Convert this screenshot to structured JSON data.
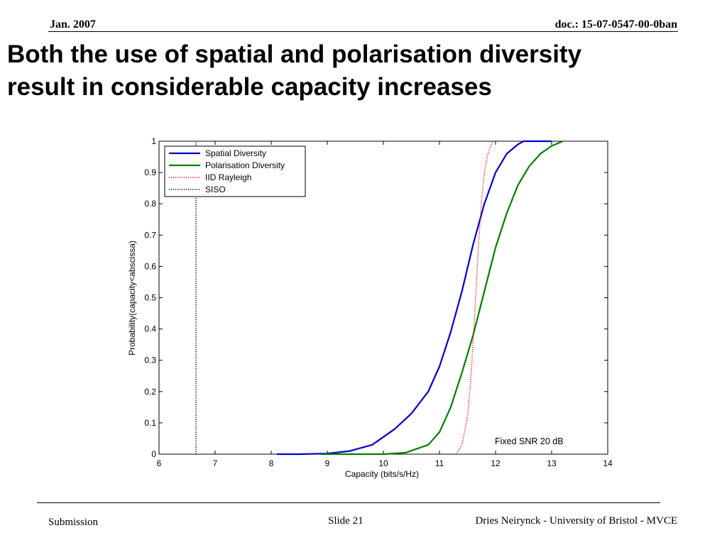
{
  "header": {
    "date": "Jan.  2007",
    "doc_id": "doc.: 15-07-0547-00-0ban"
  },
  "slide_title": {
    "line1": "Both the use of spatial and polarisation diversity",
    "line2": "result in considerable capacity increases"
  },
  "footer": {
    "left": "Submission",
    "center": "Slide 21",
    "right": "Dries Neirynck - University of Bristol - MVCE"
  },
  "chart_data": {
    "type": "line",
    "title": "",
    "xlabel": "Capacity (bits/s/Hz)",
    "ylabel": "Probability(capacity<abscissa)",
    "xlim": [
      6,
      14
    ],
    "ylim": [
      0,
      1
    ],
    "xticks": [
      6,
      7,
      8,
      9,
      10,
      11,
      12,
      13,
      14
    ],
    "yticks": [
      0,
      0.1,
      0.2,
      0.3,
      0.4,
      0.5,
      0.6,
      0.7,
      0.8,
      0.9,
      1
    ],
    "grid": false,
    "legend_position": "top-left",
    "annotation": "Fixed SNR 20 dB",
    "series": [
      {
        "name": "Spatial Diversity",
        "color": "#0000cc",
        "style": "solid",
        "x": [
          8.1,
          8.5,
          9.0,
          9.4,
          9.8,
          10.2,
          10.5,
          10.8,
          11.0,
          11.2,
          11.4,
          11.6,
          11.8,
          12.0,
          12.1,
          12.2,
          12.4,
          12.5,
          12.7,
          13.0
        ],
        "y": [
          0.0,
          0.0,
          0.002,
          0.01,
          0.03,
          0.08,
          0.13,
          0.2,
          0.28,
          0.39,
          0.52,
          0.67,
          0.8,
          0.9,
          0.93,
          0.96,
          0.99,
          1.0,
          1.0,
          1.0
        ]
      },
      {
        "name": "Polarisation Diversity",
        "color": "#008000",
        "style": "solid",
        "x": [
          8.9,
          9.5,
          10.0,
          10.4,
          10.8,
          11.0,
          11.2,
          11.4,
          11.6,
          11.8,
          12.0,
          12.2,
          12.4,
          12.6,
          12.8,
          13.0,
          13.2
        ],
        "y": [
          0.0,
          0.0,
          0.0,
          0.005,
          0.03,
          0.07,
          0.15,
          0.26,
          0.38,
          0.52,
          0.66,
          0.77,
          0.86,
          0.92,
          0.96,
          0.985,
          1.0
        ]
      },
      {
        "name": "IID Rayleigh",
        "color": "#ff0000",
        "style": "dotted",
        "x": [
          11.3,
          11.4,
          11.5,
          11.55,
          11.6,
          11.65,
          11.7,
          11.75,
          11.8,
          11.85,
          11.9,
          11.95
        ],
        "y": [
          0.0,
          0.03,
          0.12,
          0.22,
          0.36,
          0.52,
          0.68,
          0.81,
          0.9,
          0.95,
          0.98,
          1.0
        ]
      },
      {
        "name": "SISO",
        "color": "#000000",
        "style": "dotted",
        "x": [
          6.66,
          6.66
        ],
        "y": [
          0.0,
          1.0
        ]
      }
    ]
  }
}
